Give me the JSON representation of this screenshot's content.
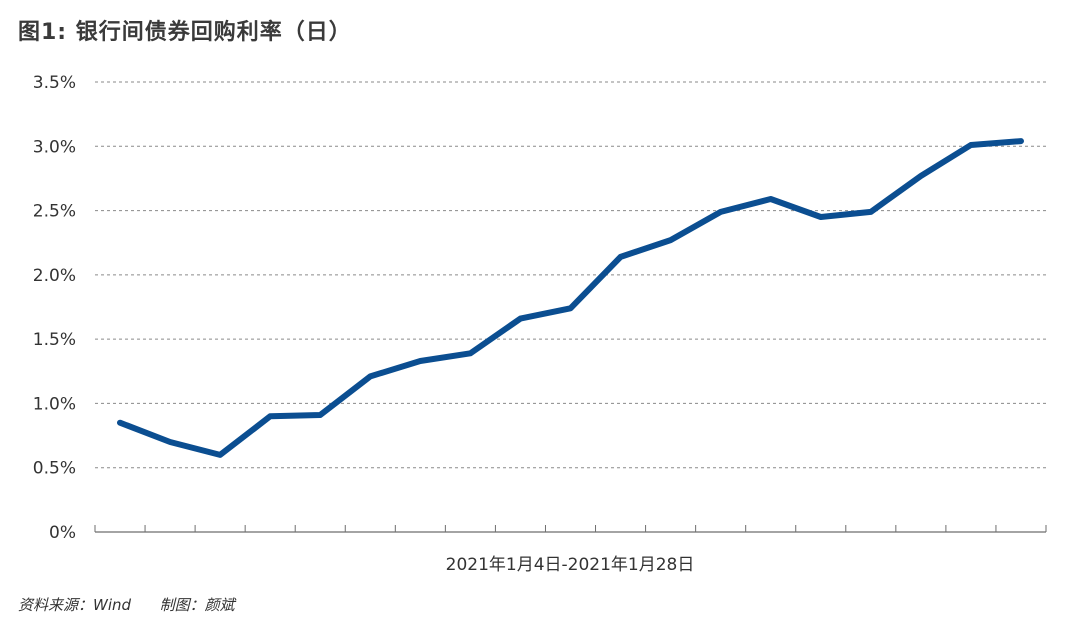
{
  "title": "图1: 银行间债券回购利率（日）",
  "footer": "资料来源：Wind      制图：颜斌",
  "chart_data": {
    "type": "line",
    "title": "图1: 银行间债券回购利率（日）",
    "xlabel": "2021年1月4日-2021年1月28日",
    "ylabel": "",
    "ylim": [
      0,
      3.5
    ],
    "y_ticks": [
      "0%",
      "0.5%",
      "1.0%",
      "1.5%",
      "2.0%",
      "2.5%",
      "3.0%",
      "3.5%"
    ],
    "y_tick_values": [
      0,
      0.5,
      1.0,
      1.5,
      2.0,
      2.5,
      3.0,
      3.5
    ],
    "grid": true,
    "color": "#0b4e91",
    "series": [
      {
        "values": [
          0.85,
          0.7,
          0.6,
          0.9,
          0.91,
          1.21,
          1.33,
          1.39,
          1.66,
          1.74,
          2.14,
          2.27,
          2.49,
          2.59,
          2.45,
          2.49,
          2.77,
          3.01,
          3.04
        ]
      }
    ]
  }
}
